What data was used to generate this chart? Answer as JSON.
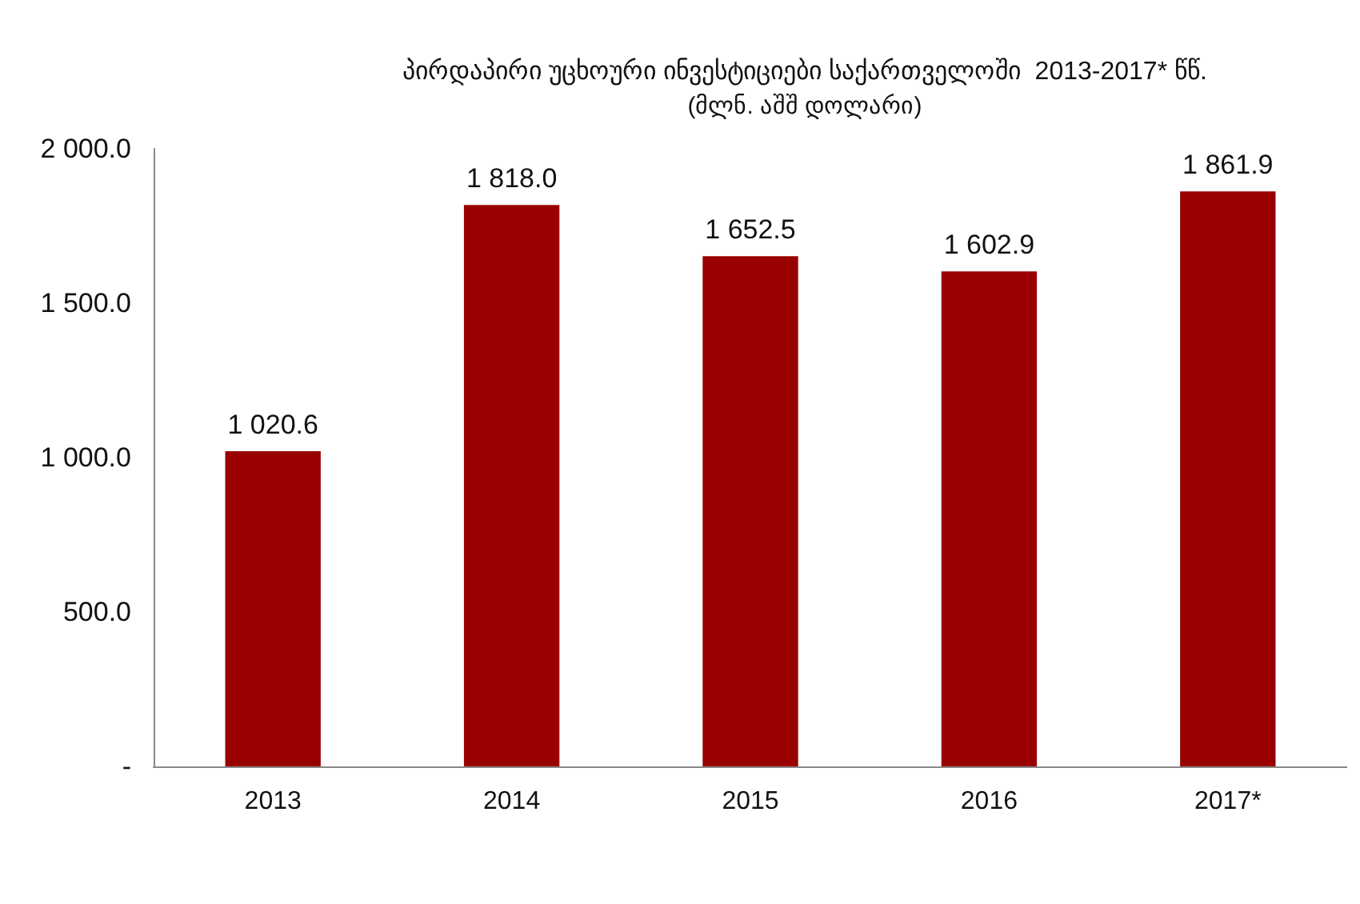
{
  "chart_data": {
    "type": "bar",
    "title": "პირდაპირი უცხოური ინვესტიციები საქართველოში  2013-2017* წწ.",
    "subtitle": "(მლნ. აშშ დოლარი)",
    "categories": [
      "2013",
      "2014",
      "2015",
      "2016",
      "2017*"
    ],
    "values": [
      1020.6,
      1818.0,
      1652.5,
      1602.9,
      1861.9
    ],
    "value_labels": [
      "1 020.6",
      "1 818.0",
      "1 652.5",
      "1 602.9",
      "1 861.9"
    ],
    "color": "#990000",
    "ylim": [
      0,
      2000
    ],
    "yticks": [
      {
        "value": 0,
        "label": "-"
      },
      {
        "value": 500,
        "label": "500.0"
      },
      {
        "value": 1000,
        "label": "1 000.0"
      },
      {
        "value": 1500,
        "label": "1 500.0"
      },
      {
        "value": 2000,
        "label": "2 000.0"
      }
    ],
    "grid": false
  }
}
